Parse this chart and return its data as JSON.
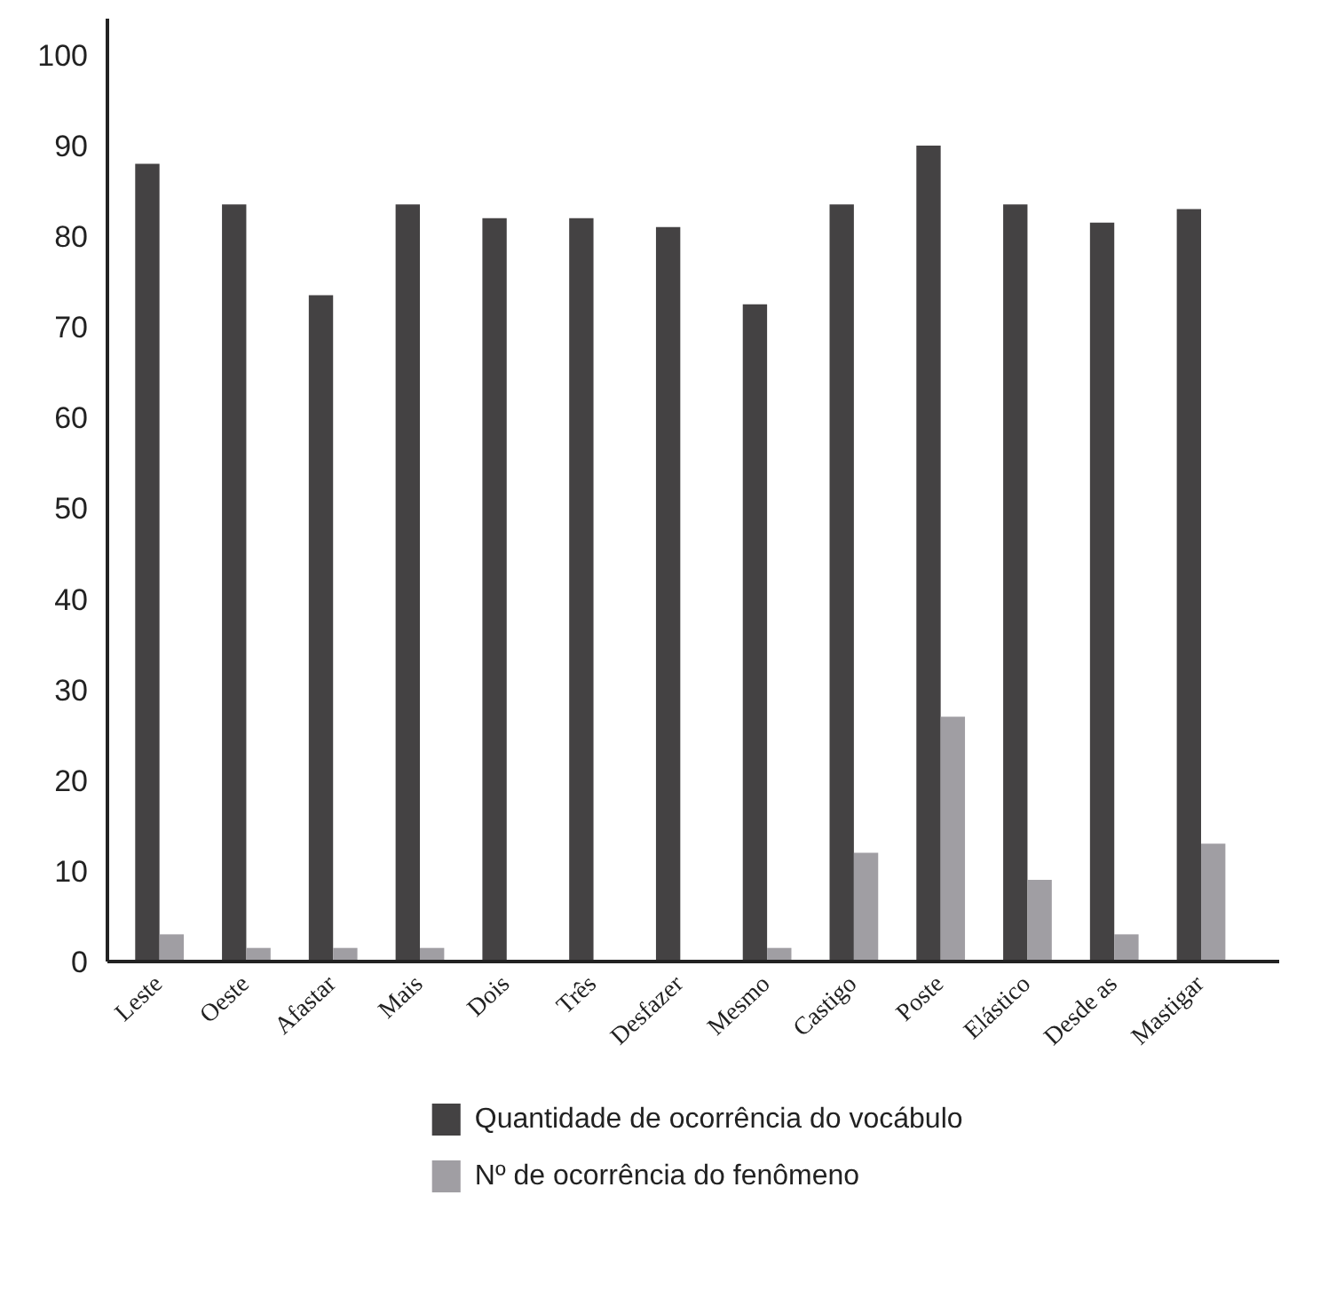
{
  "chart_data": {
    "type": "bar",
    "categories": [
      "Leste",
      "Oeste",
      "Afastar",
      "Mais",
      "Dois",
      "Três",
      "Desfazer",
      "Mesmo",
      "Castigo",
      "Poste",
      "Elástico",
      "Desde as",
      "Mastigar"
    ],
    "series": [
      {
        "name": "Quantidade de ocorrência do vocábulo",
        "color": "#444243",
        "values": [
          88,
          83.5,
          73.5,
          83.5,
          82,
          82,
          81,
          72.5,
          83.5,
          90,
          83.5,
          81.5,
          83
        ]
      },
      {
        "name": "Nº de ocorrência do fenômeno",
        "color": "#a09ea3",
        "values": [
          3,
          1.5,
          1.5,
          1.5,
          0,
          0,
          0,
          1.5,
          12,
          27,
          9,
          3,
          13
        ]
      }
    ],
    "ylim": [
      0,
      104
    ],
    "yticks": [
      0,
      10,
      20,
      30,
      40,
      50,
      60,
      70,
      80,
      90,
      100
    ],
    "grid": false,
    "legend": "bottom"
  }
}
